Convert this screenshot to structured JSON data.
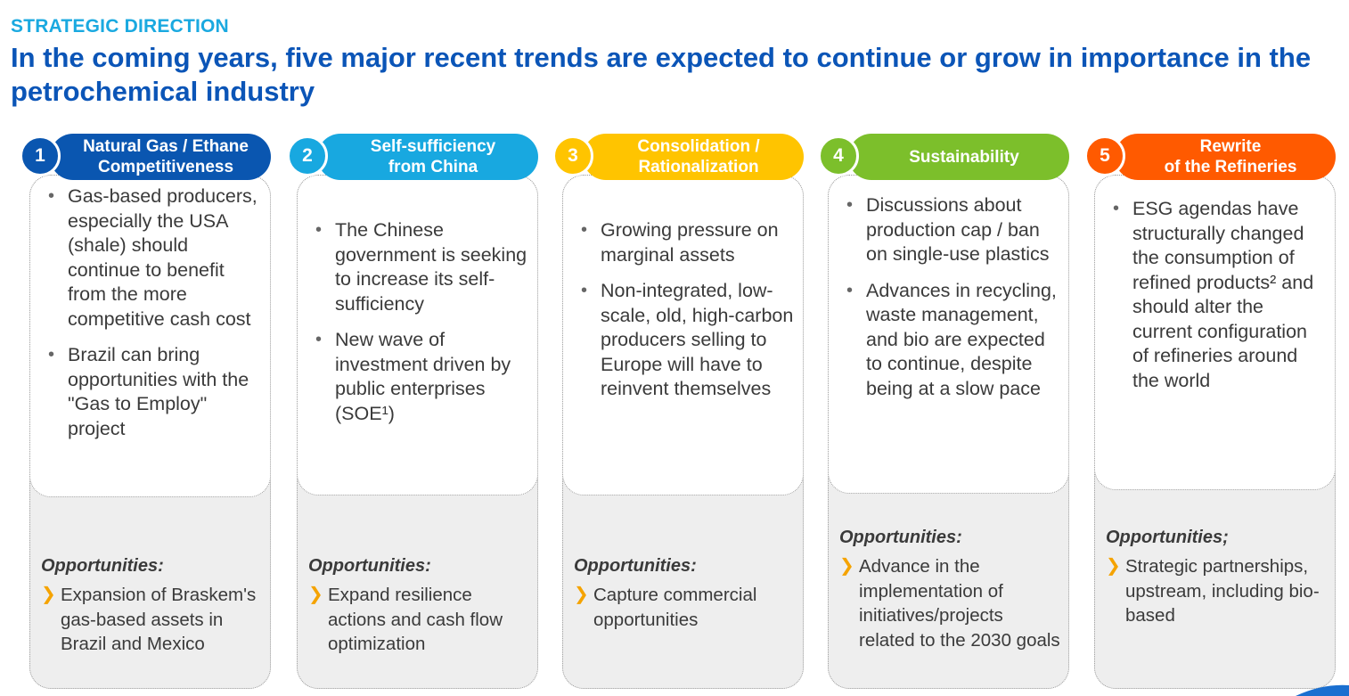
{
  "header": {
    "section_label": "STRATEGIC DIRECTION",
    "title": "In the coming years, five major recent trends are expected to continue or grow in importance in the petrochemical industry"
  },
  "colors": {
    "col1": "#0a56b0",
    "col2": "#18a8e0",
    "col3": "#ffc400",
    "col4": "#7cbf2b",
    "col5": "#ff5a00",
    "accent_arrow": "#f5a300"
  },
  "trends": [
    {
      "number": "1",
      "title_line1": "Natural Gas / Ethane",
      "title_line2": "Competitiveness",
      "bullets": [
        "Gas-based producers, especially the USA (shale) should continue to benefit from the more competitive cash cost",
        "Brazil can bring opportunities with the \"Gas to Employ\" project"
      ],
      "opportunities_label": "Opportunities:",
      "opportunity": "Expansion of Braskem's gas-based assets in Brazil and Mexico"
    },
    {
      "number": "2",
      "title_line1": "Self-sufficiency",
      "title_line2": "from China",
      "bullets": [
        "The Chinese government is seeking to increase its self-sufficiency",
        "New wave of investment driven by public enterprises (SOE¹)"
      ],
      "opportunities_label": "Opportunities:",
      "opportunity": "Expand resilience actions and cash flow optimization"
    },
    {
      "number": "3",
      "title_line1": "Consolidation /",
      "title_line2": "Rationalization",
      "bullets": [
        "Growing pressure on marginal assets",
        "Non-integrated, low-scale, old, high-carbon producers selling to Europe will have to reinvent themselves"
      ],
      "opportunities_label": "Opportunities:",
      "opportunity": "Capture commercial opportunities"
    },
    {
      "number": "4",
      "title_line1": "Sustainability",
      "title_line2": "",
      "bullets": [
        "Discussions about production cap / ban on single-use plastics",
        "Advances in recycling, waste management, and bio are expected to continue, despite being at a slow pace"
      ],
      "opportunities_label": "Opportunities:",
      "opportunity": "Advance in the implementation of initiatives/projects related to the 2030 goals"
    },
    {
      "number": "5",
      "title_line1": "Rewrite",
      "title_line2": "of the Refineries",
      "bullets": [
        "ESG agendas have structurally changed the consumption of refined products² and should alter the current configuration of refineries around the world"
      ],
      "opportunities_label": "Opportunities;",
      "opportunity": "Strategic partnerships, upstream, including bio-based"
    }
  ]
}
